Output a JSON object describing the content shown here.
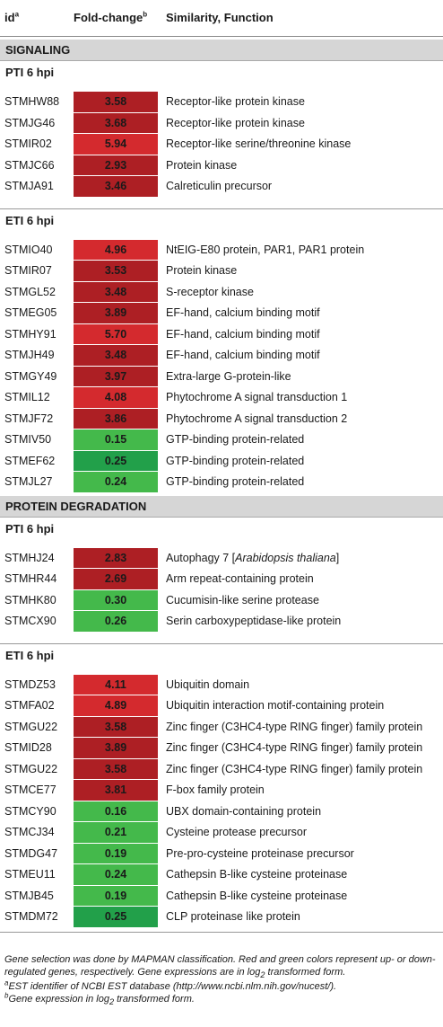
{
  "header": {
    "id": "id",
    "id_sup": "a",
    "fold": "Fold-change",
    "fold_sup": "b",
    "func": "Similarity, Function"
  },
  "colors": {
    "dark_red": "#ad1f24",
    "red": "#d42a2e",
    "green": "#44b94b",
    "dark_green": "#22a04a",
    "section_bg": "#d6d6d6"
  },
  "sections": [
    {
      "title": "SIGNALING",
      "groups": [
        {
          "title": "PTI 6 hpi",
          "rows": [
            {
              "id": "STMHW88",
              "fc": "3.58",
              "fn": "Receptor-like protein kinase",
              "color": "dark_red"
            },
            {
              "id": "STMJG46",
              "fc": "3.68",
              "fn": "Receptor-like protein kinase",
              "color": "dark_red"
            },
            {
              "id": "STMIR02",
              "fc": "5.94",
              "fn": "Receptor-like serine/threonine kinase",
              "color": "red"
            },
            {
              "id": "STMJC66",
              "fc": "2.93",
              "fn": "Protein kinase",
              "color": "dark_red"
            },
            {
              "id": "STMJA91",
              "fc": "3.46",
              "fn": "Calreticulin precursor",
              "color": "dark_red"
            }
          ]
        },
        {
          "title": "ETI 6 hpi",
          "rows": [
            {
              "id": "STMIO40",
              "fc": "4.96",
              "fn": "NtEIG-E80 protein, PAR1, PAR1 protein",
              "color": "red"
            },
            {
              "id": "STMIR07",
              "fc": "3.53",
              "fn": "Protein kinase",
              "color": "dark_red"
            },
            {
              "id": "STMGL52",
              "fc": "3.48",
              "fn": "S-receptor kinase",
              "color": "dark_red"
            },
            {
              "id": "STMEG05",
              "fc": "3.89",
              "fn": "EF-hand, calcium binding motif",
              "color": "dark_red"
            },
            {
              "id": "STMHY91",
              "fc": "5.70",
              "fn": "EF-hand, calcium binding motif",
              "color": "red"
            },
            {
              "id": "STMJH49",
              "fc": "3.48",
              "fn": "EF-hand, calcium binding motif",
              "color": "dark_red"
            },
            {
              "id": "STMGY49",
              "fc": "3.97",
              "fn": "Extra-large G-protein-like",
              "color": "dark_red"
            },
            {
              "id": "STMIL12",
              "fc": "4.08",
              "fn": "Phytochrome A signal transduction 1",
              "color": "red"
            },
            {
              "id": "STMJF72",
              "fc": "3.86",
              "fn": "Phytochrome A signal transduction 2",
              "color": "dark_red"
            },
            {
              "id": "STMIV50",
              "fc": "0.15",
              "fn": "GTP-binding protein-related",
              "color": "green"
            },
            {
              "id": "STMEF62",
              "fc": "0.25",
              "fn": "GTP-binding protein-related",
              "color": "dark_green"
            },
            {
              "id": "STMJL27",
              "fc": "0.24",
              "fn": "GTP-binding protein-related",
              "color": "green"
            }
          ]
        }
      ]
    },
    {
      "title": "PROTEIN DEGRADATION",
      "groups": [
        {
          "title": "PTI 6 hpi",
          "rows": [
            {
              "id": "STMHJ24",
              "fc": "2.83",
              "fn": "Autophagy 7 [",
              "fn_italic": "Arabidopsis thaliana",
              "fn_after": "]",
              "color": "dark_red"
            },
            {
              "id": "STMHR44",
              "fc": "2.69",
              "fn": "Arm repeat-containing protein",
              "color": "dark_red"
            },
            {
              "id": "STMHK80",
              "fc": "0.30",
              "fn": "Cucumisin-like serine protease",
              "color": "green"
            },
            {
              "id": "STMCX90",
              "fc": "0.26",
              "fn": "Serin carboxypeptidase-like protein",
              "color": "green"
            }
          ]
        },
        {
          "title": "ETI 6 hpi",
          "rows": [
            {
              "id": "STMDZ53",
              "fc": "4.11",
              "fn": "Ubiquitin domain",
              "color": "red"
            },
            {
              "id": "STMFA02",
              "fc": "4.89",
              "fn": "Ubiquitin interaction motif-containing protein",
              "color": "red"
            },
            {
              "id": "STMGU22",
              "fc": "3.58",
              "fn": "Zinc finger (C3HC4-type RING finger) family protein",
              "color": "dark_red"
            },
            {
              "id": "STMID28",
              "fc": "3.89",
              "fn": "Zinc finger (C3HC4-type RING finger) family protein",
              "color": "dark_red"
            },
            {
              "id": "STMGU22",
              "fc": "3.58",
              "fn": "Zinc finger (C3HC4-type RING finger) family protein",
              "color": "dark_red"
            },
            {
              "id": "STMCE77",
              "fc": "3.81",
              "fn": "F-box family protein",
              "color": "dark_red"
            },
            {
              "id": "STMCY90",
              "fc": "0.16",
              "fn": "UBX domain-containing protein",
              "color": "green"
            },
            {
              "id": "STMCJ34",
              "fc": "0.21",
              "fn": "Cysteine protease precursor",
              "color": "green"
            },
            {
              "id": "STMDG47",
              "fc": "0.19",
              "fn": "Pre-pro-cysteine proteinase precursor",
              "color": "green"
            },
            {
              "id": "STMEU11",
              "fc": "0.24",
              "fn": "Cathepsin B-like cysteine proteinase",
              "color": "green"
            },
            {
              "id": "STMJB45",
              "fc": "0.19",
              "fn": "Cathepsin B-like cysteine proteinase",
              "color": "green"
            },
            {
              "id": "STMDM72",
              "fc": "0.25",
              "fn": "CLP proteinase like protein",
              "color": "dark_green"
            }
          ]
        }
      ]
    }
  ],
  "footnotes": {
    "main": "Gene selection was done by MAPMAN classification. Red and green colors represent up- or down-regulated genes, respectively. Gene expressions are in log",
    "main_sub": "2",
    "main_end": " transformed form.",
    "a_sup": "a",
    "a_text": "EST identifier of NCBI EST database (http://www.ncbi.nlm.nih.gov/nucest/).",
    "b_sup": "b",
    "b_text": "Gene expression in log",
    "b_sub": "2",
    "b_end": " transformed form."
  }
}
